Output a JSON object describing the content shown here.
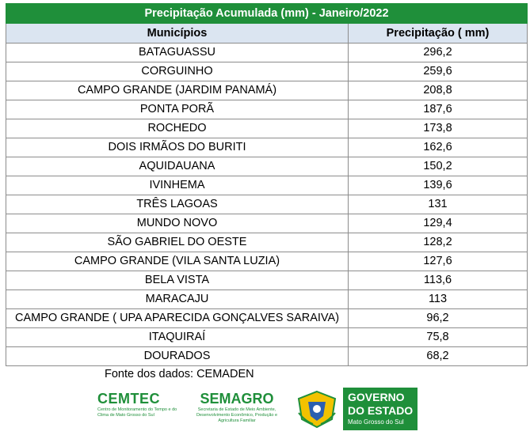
{
  "table": {
    "title": "Precipitação Acumulada (mm) - Janeiro/2022",
    "headers": [
      "Municípios",
      "Precipitação ( mm)"
    ],
    "rows": [
      {
        "municipio": "BATAGUASSU",
        "valor": "296,2"
      },
      {
        "municipio": "CORGUINHO",
        "valor": "259,6"
      },
      {
        "municipio": "CAMPO GRANDE (JARDIM PANAMÁ)",
        "valor": "208,8"
      },
      {
        "municipio": "PONTA PORÃ",
        "valor": "187,6"
      },
      {
        "municipio": "ROCHEDO",
        "valor": "173,8"
      },
      {
        "municipio": "DOIS IRMÃOS DO BURITI",
        "valor": "162,6"
      },
      {
        "municipio": "AQUIDAUANA",
        "valor": "150,2"
      },
      {
        "municipio": "IVINHEMA",
        "valor": "139,6"
      },
      {
        "municipio": "TRÊS LAGOAS",
        "valor": "131"
      },
      {
        "municipio": "MUNDO NOVO",
        "valor": "129,4"
      },
      {
        "municipio": "SÃO GABRIEL DO OESTE",
        "valor": "128,2"
      },
      {
        "municipio": "CAMPO GRANDE (VILA SANTA LUZIA)",
        "valor": "127,6"
      },
      {
        "municipio": "BELA VISTA",
        "valor": "113,6"
      },
      {
        "municipio": "MARACAJU",
        "valor": "113"
      },
      {
        "municipio": "CAMPO GRANDE ( UPA APARECIDA GONÇALVES SARAIVA)",
        "valor": "96,2"
      },
      {
        "municipio": "ITAQUIRAÍ",
        "valor": "75,8"
      },
      {
        "municipio": "DOURADOS",
        "valor": "68,2"
      }
    ]
  },
  "source": "Fonte dos dados: CEMADEN",
  "logos": {
    "cemtec_name": "CEMTEC",
    "cemtec_sub": "Centro de Monitoramento do Tempo e do Clima de Mato Grosso do Sul",
    "semagro_name": "SEMAGRO",
    "semagro_sub": "Secretaria de Estado de Meio Ambiente, Desenvolvimento Econômico, Produção e Agricultura Familiar",
    "gov_line1": "GOVERNO",
    "gov_line2": "DO ESTADO",
    "gov_line3": "Mato Grosso do Sul"
  },
  "colors": {
    "green": "#1f8f3a",
    "header_bg": "#dbe5f1"
  }
}
